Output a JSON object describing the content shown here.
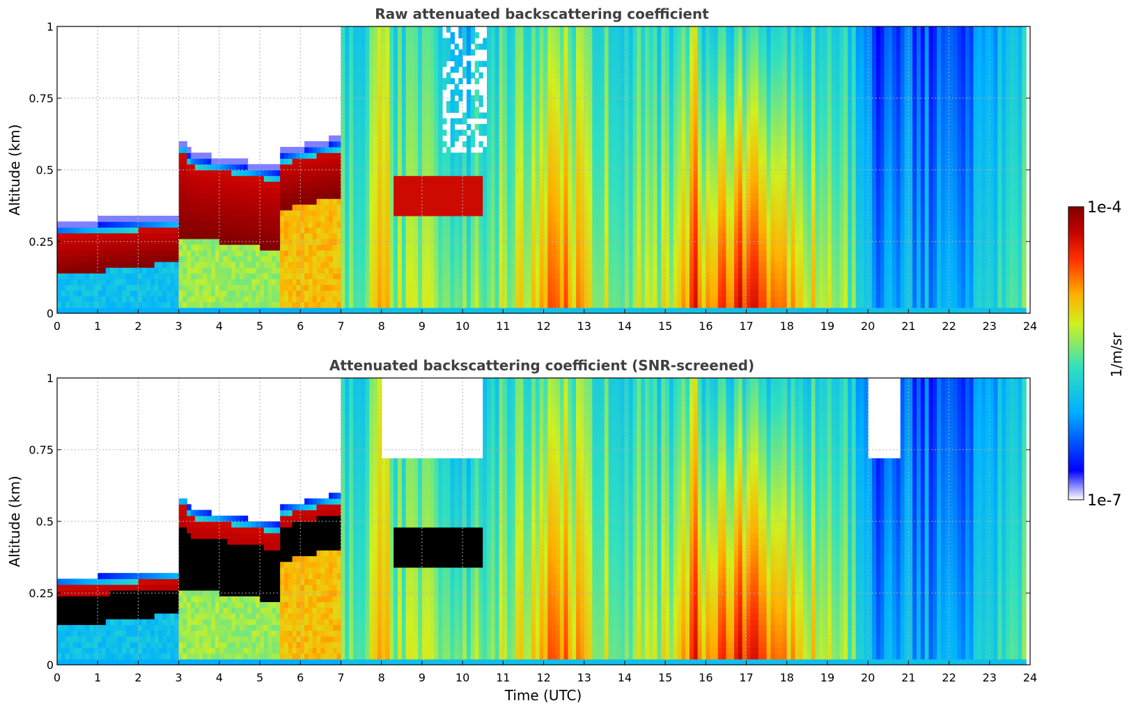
{
  "chart_data": [
    {
      "type": "heatmap",
      "title": "Raw attenuated backscattering coefficient",
      "xlabel": "",
      "ylabel": "Altitude (km)",
      "xlim": [
        0,
        24
      ],
      "ylim": [
        0,
        1
      ],
      "x_ticks": [
        "0",
        "1",
        "2",
        "3",
        "4",
        "5",
        "6",
        "7",
        "8",
        "9",
        "10",
        "11",
        "12",
        "13",
        "14",
        "15",
        "16",
        "17",
        "18",
        "19",
        "20",
        "21",
        "22",
        "23",
        "24"
      ],
      "y_ticks": [
        "0",
        "0.25",
        "0.5",
        "0.75",
        "1"
      ],
      "grid": true,
      "colormap": "jet",
      "scale": "log",
      "data_end_hour": 23.85,
      "features": [
        {
          "kind": "fog_layer",
          "from_hour": 0,
          "to_hour": 3,
          "base_km": 0.12,
          "top_km": 0.3
        },
        {
          "kind": "fog_layer",
          "from_hour": 3,
          "to_hour": 5.5,
          "base_km": 0.22,
          "top_km": 0.58
        },
        {
          "kind": "fog_layer",
          "from_hour": 5.5,
          "to_hour": 7,
          "base_km": 0.33,
          "top_km": 0.58
        },
        {
          "kind": "cloud_patch",
          "from_hour": 8.3,
          "to_hour": 10.5,
          "base_km": 0.33,
          "top_km": 0.5
        },
        {
          "kind": "high_backscatter_region",
          "from_hour": 15.8,
          "to_hour": 18.7,
          "base_km": 0.0,
          "top_km": 0.4
        },
        {
          "kind": "low_backscatter_region",
          "from_hour": 20.0,
          "to_hour": 23.5,
          "base_km": 0.0,
          "top_km": 1.0
        }
      ]
    },
    {
      "type": "heatmap",
      "title": "Attenuated backscattering coefficient (SNR-screened)",
      "xlabel": "Time (UTC)",
      "ylabel": "Altitude (km)",
      "xlim": [
        0,
        24
      ],
      "ylim": [
        0,
        1
      ],
      "x_ticks": [
        "0",
        "1",
        "2",
        "3",
        "4",
        "5",
        "6",
        "7",
        "8",
        "9",
        "10",
        "11",
        "12",
        "13",
        "14",
        "15",
        "16",
        "17",
        "18",
        "19",
        "20",
        "21",
        "22",
        "23",
        "24"
      ],
      "y_ticks": [
        "0",
        "0.25",
        "0.5",
        "0.75",
        "1"
      ],
      "grid": true,
      "colormap": "jet",
      "scale": "log",
      "data_end_hour": 23.85,
      "features": [
        {
          "kind": "saturated_black_layer",
          "from_hour": 0,
          "to_hour": 3,
          "base_km": 0.12,
          "top_km": 0.26
        },
        {
          "kind": "saturated_black_layer",
          "from_hour": 3,
          "to_hour": 7,
          "base_km": 0.25,
          "top_km": 0.55
        },
        {
          "kind": "saturated_black_layer",
          "from_hour": 8.3,
          "to_hour": 10.5,
          "base_km": 0.33,
          "top_km": 0.48
        }
      ]
    }
  ],
  "colorbar": {
    "max_label": "1e-4",
    "min_label": "1e-7",
    "label": "1/m/sr"
  },
  "colors": {
    "title_color": "#404040",
    "grid_color": "#b0b0b0"
  }
}
